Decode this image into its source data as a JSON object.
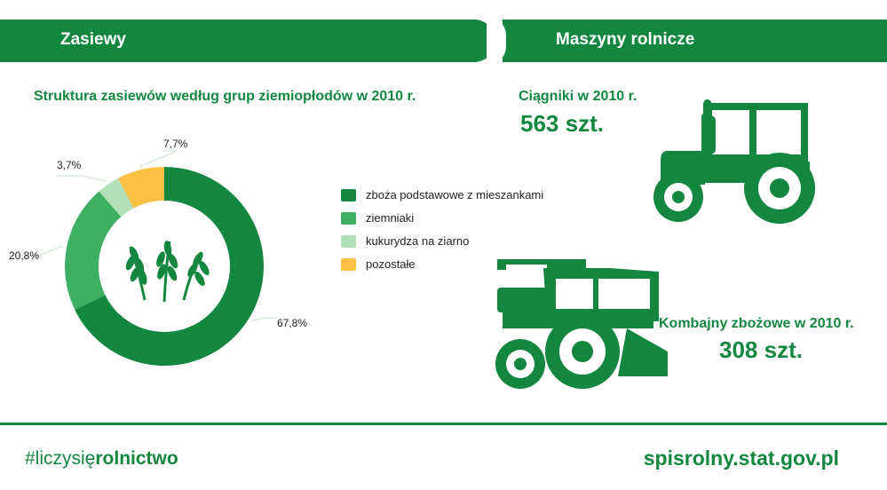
{
  "header": {
    "left_title": "Zasiewy",
    "right_title": "Maszyny rolnicze"
  },
  "chart_data": {
    "type": "pie",
    "title": "Struktura zasiewów według grup ziemiopłodów w 2010 r.",
    "slices": [
      {
        "name": "zboża podstawowe z mieszankami",
        "value": 67.8,
        "label": "67,8%",
        "color": "#13873f"
      },
      {
        "name": "ziemniaki",
        "value": 20.8,
        "label": "20,8%",
        "color": "#3eaf62"
      },
      {
        "name": "kukurydza na ziarno",
        "value": 3.7,
        "label": "3,7%",
        "color": "#b3e0b6"
      },
      {
        "name": "pozostałe",
        "value": 7.7,
        "label": "7,7%",
        "color": "#fbc044"
      }
    ],
    "legend_position": "right",
    "center_icon": "wheat-icon"
  },
  "machines": {
    "tractors_label": "Ciągniki w 2010 r.",
    "tractors_value": "563 szt.",
    "tractor_icon": "tractor-icon",
    "combines_label": "Kombajny zbożowe w 2010 r.",
    "combines_value": "308 szt.",
    "combine_icon": "combine-harvester-icon"
  },
  "footer": {
    "hashtag_prefix": "#liczysię",
    "hashtag_bold": "rolnictwo",
    "website": "spisrolny.stat.gov.pl"
  },
  "colors": {
    "brand_green": "#13873f"
  }
}
